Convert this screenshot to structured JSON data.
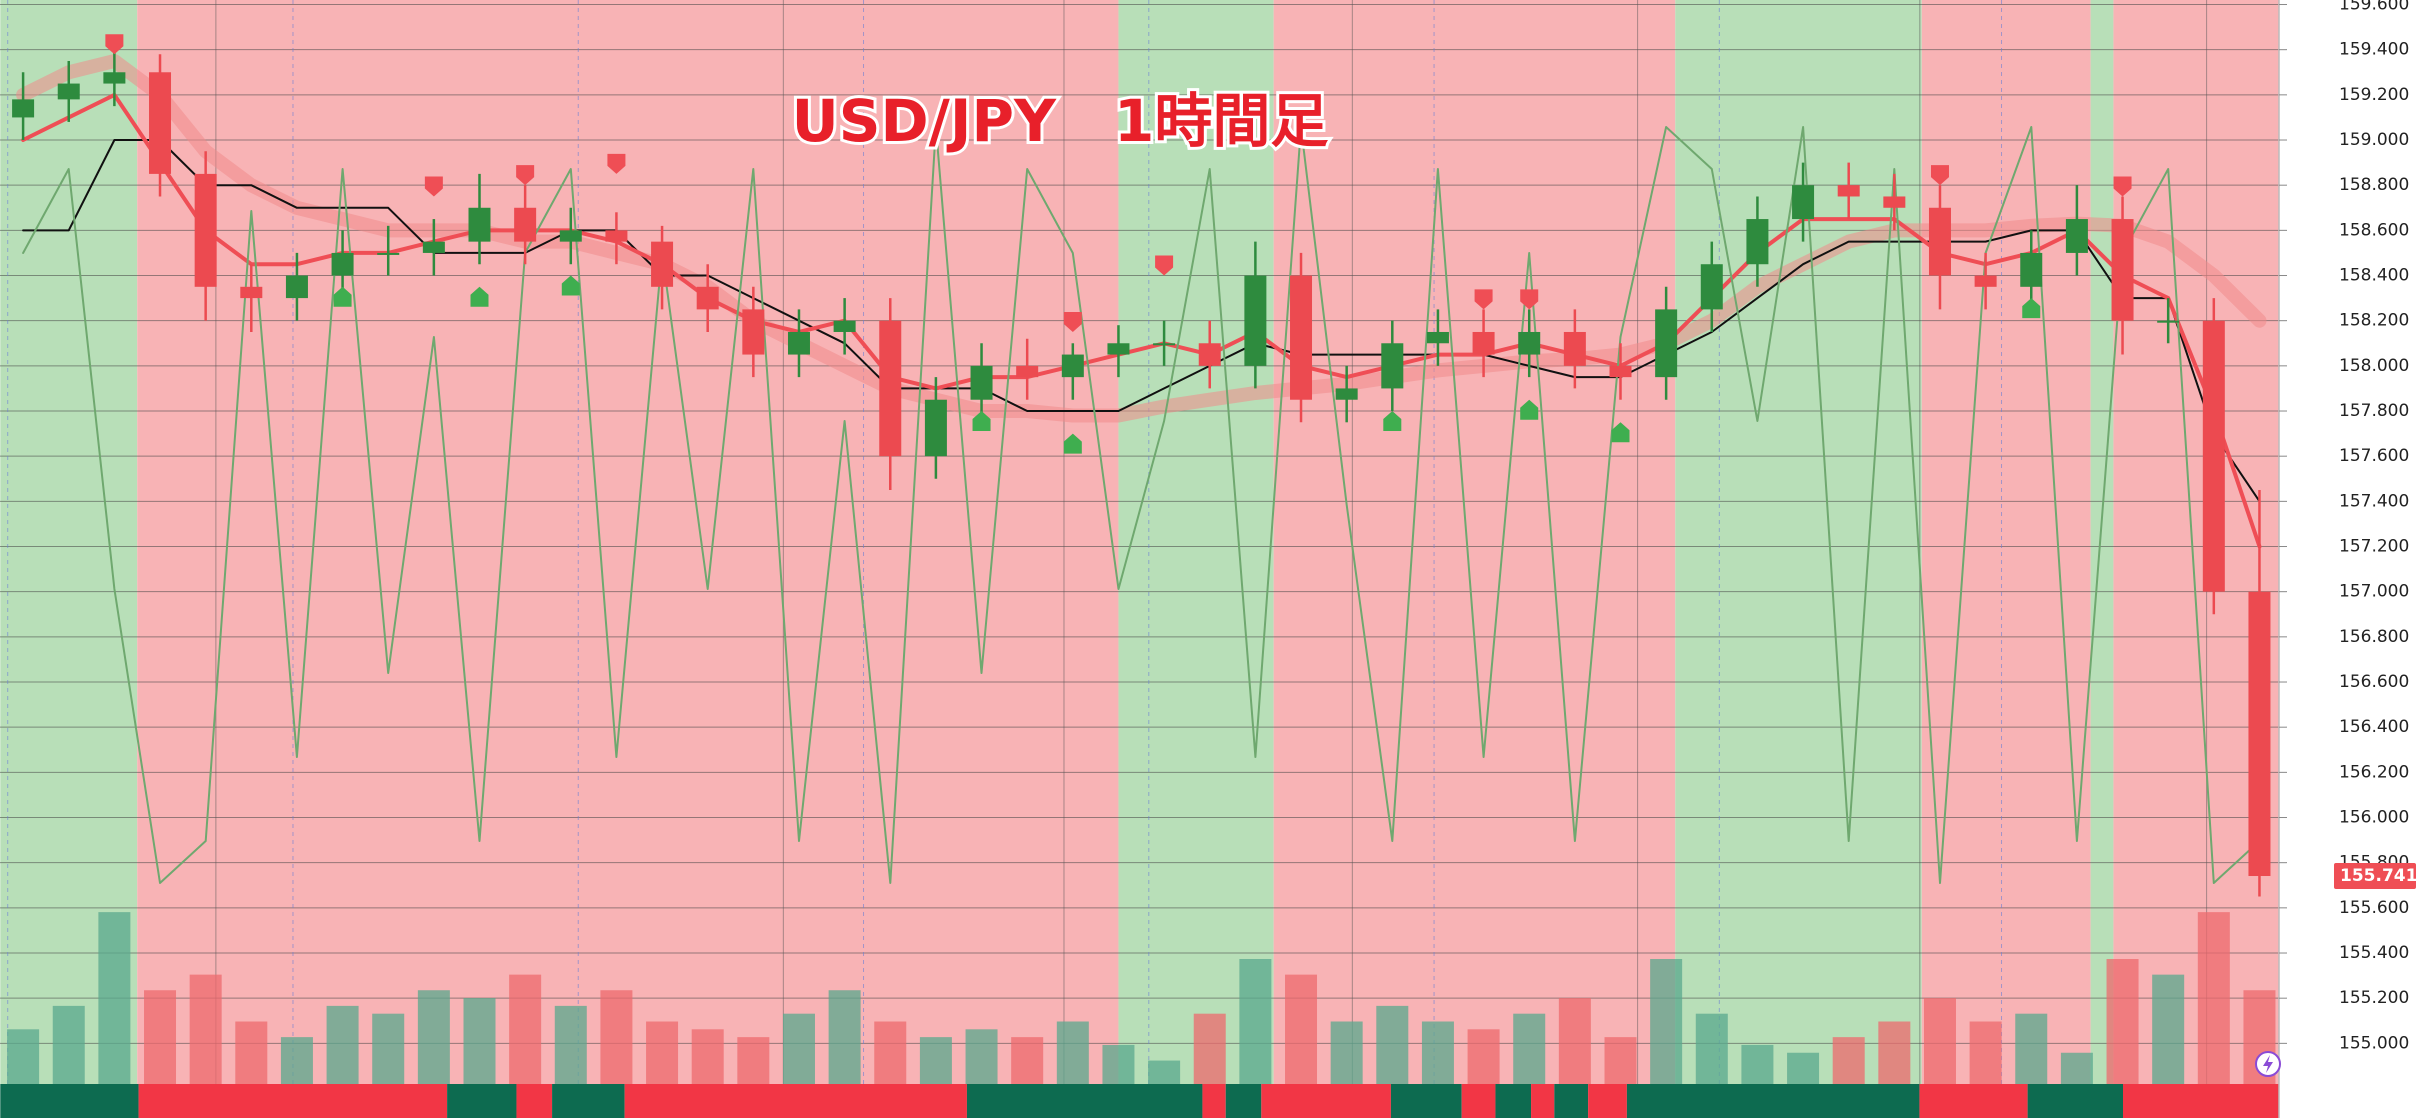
{
  "chart_data": {
    "type": "candlestick",
    "title": "USD/JPY　1時間足",
    "title_color": "#e8202a",
    "ylim": [
      154.82,
      159.62
    ],
    "yticks": [
      {
        "value": 155.0,
        "label": "155.000"
      },
      {
        "value": 155.2,
        "label": "155.200"
      },
      {
        "value": 155.4,
        "label": "155.400"
      },
      {
        "value": 155.6,
        "label": "155.600"
      },
      {
        "value": 155.8,
        "label": "155.800"
      },
      {
        "value": 156.0,
        "label": "156.000"
      },
      {
        "value": 156.2,
        "label": "156.200"
      },
      {
        "value": 156.4,
        "label": "156.400"
      },
      {
        "value": 156.6,
        "label": "156.600"
      },
      {
        "value": 156.8,
        "label": "156.800"
      },
      {
        "value": 157.0,
        "label": "157.000"
      },
      {
        "value": 157.2,
        "label": "157.200"
      },
      {
        "value": 157.4,
        "label": "157.400"
      },
      {
        "value": 157.6,
        "label": "157.600"
      },
      {
        "value": 157.8,
        "label": "157.800"
      },
      {
        "value": 158.0,
        "label": "158.000"
      },
      {
        "value": 158.2,
        "label": "158.200"
      },
      {
        "value": 158.4,
        "label": "158.400"
      },
      {
        "value": 158.6,
        "label": "158.600"
      },
      {
        "value": 158.8,
        "label": "158.800"
      },
      {
        "value": 159.0,
        "label": "159.000"
      },
      {
        "value": 159.2,
        "label": "159.200"
      },
      {
        "value": 159.4,
        "label": "159.400"
      },
      {
        "value": 159.6,
        "label": "159.600"
      }
    ],
    "grid": true,
    "up_color": "#2e8b3e",
    "down_color": "#ec4a50",
    "open": [
      159.1,
      159.18,
      159.25,
      159.3,
      158.85,
      158.35,
      158.3,
      158.4,
      158.5,
      158.5,
      158.55,
      158.7,
      158.55,
      158.6,
      158.55,
      158.35,
      158.25,
      158.05,
      158.15,
      158.2,
      157.6,
      157.85,
      158.0,
      157.95,
      158.05,
      158.1,
      158.1,
      158.0,
      158.4,
      157.85,
      157.9,
      158.1,
      158.15,
      158.05,
      158.15,
      158.0,
      157.95,
      158.25,
      158.45,
      158.65,
      158.8,
      158.75,
      158.7,
      158.4,
      158.35,
      158.5,
      158.65,
      158.2,
      158.2,
      157.0
    ],
    "high": [
      159.3,
      159.35,
      159.4,
      159.38,
      158.95,
      158.45,
      158.5,
      158.6,
      158.62,
      158.65,
      158.85,
      158.8,
      158.7,
      158.68,
      158.62,
      158.45,
      158.35,
      158.25,
      158.3,
      158.3,
      157.95,
      158.1,
      158.12,
      158.1,
      158.18,
      158.2,
      158.2,
      158.55,
      158.5,
      158.0,
      158.2,
      158.25,
      158.25,
      158.25,
      158.25,
      158.1,
      158.35,
      158.55,
      158.75,
      158.9,
      158.9,
      158.85,
      158.8,
      158.5,
      158.6,
      158.8,
      158.75,
      158.3,
      158.3,
      157.45
    ],
    "low": [
      159.0,
      159.08,
      159.15,
      158.75,
      158.2,
      158.15,
      158.2,
      158.3,
      158.4,
      158.4,
      158.45,
      158.45,
      158.45,
      158.45,
      158.25,
      158.15,
      157.95,
      157.95,
      158.05,
      157.45,
      157.5,
      157.75,
      157.85,
      157.85,
      157.95,
      158.0,
      157.9,
      157.9,
      157.75,
      157.75,
      157.8,
      158.0,
      157.95,
      157.95,
      157.9,
      157.85,
      157.85,
      158.15,
      158.35,
      158.55,
      158.65,
      158.6,
      158.25,
      158.25,
      158.25,
      158.4,
      158.05,
      158.1,
      156.9,
      155.65
    ],
    "close": [
      159.18,
      159.25,
      159.3,
      158.85,
      158.35,
      158.3,
      158.4,
      158.5,
      158.5,
      158.55,
      158.7,
      158.55,
      158.6,
      158.55,
      158.35,
      158.25,
      158.05,
      158.15,
      158.2,
      157.6,
      157.85,
      158.0,
      157.95,
      158.05,
      158.1,
      158.1,
      158.0,
      158.4,
      157.85,
      157.9,
      158.1,
      158.15,
      158.05,
      158.15,
      158.0,
      157.95,
      158.25,
      158.45,
      158.65,
      158.8,
      158.75,
      158.7,
      158.4,
      158.35,
      158.5,
      158.65,
      158.2,
      158.2,
      157.0,
      155.741
    ],
    "volume": [
      35,
      50,
      110,
      60,
      70,
      40,
      30,
      50,
      45,
      60,
      55,
      70,
      50,
      60,
      40,
      35,
      30,
      45,
      60,
      40,
      30,
      35,
      30,
      40,
      25,
      15,
      45,
      80,
      70,
      40,
      50,
      40,
      35,
      45,
      55,
      30,
      80,
      45,
      25,
      20,
      30,
      40,
      55,
      40,
      45,
      20,
      80,
      70,
      110,
      60
    ],
    "volume_lim": [
      0,
      160
    ],
    "series": [
      {
        "color": "#f08a8a",
        "width": 14,
        "opacity": 0.55,
        "values": [
          159.2,
          159.3,
          159.35,
          159.2,
          158.95,
          158.8,
          158.7,
          158.65,
          158.6,
          158.6,
          158.6,
          158.55,
          158.55,
          158.5,
          158.45,
          158.35,
          158.2,
          158.1,
          158.0,
          157.9,
          157.85,
          157.8,
          157.8,
          157.78,
          157.78,
          157.82,
          157.85,
          157.88,
          157.9,
          157.92,
          157.95,
          157.98,
          158.0,
          158.02,
          158.03,
          158.05,
          158.1,
          158.2,
          158.35,
          158.45,
          158.55,
          158.6,
          158.6,
          158.6,
          158.62,
          158.63,
          158.62,
          158.55,
          158.4,
          158.2
        ]
      },
      {
        "color": "#111111",
        "width": 2,
        "opacity": 1,
        "values": [
          158.6,
          158.6,
          159.0,
          159.0,
          158.8,
          158.8,
          158.7,
          158.7,
          158.7,
          158.5,
          158.5,
          158.5,
          158.6,
          158.6,
          158.4,
          158.4,
          158.3,
          158.2,
          158.1,
          157.9,
          157.9,
          157.9,
          157.8,
          157.8,
          157.8,
          157.9,
          158.0,
          158.1,
          158.05,
          158.05,
          158.05,
          158.05,
          158.05,
          158.0,
          157.95,
          157.95,
          158.05,
          158.15,
          158.3,
          158.45,
          158.55,
          158.55,
          158.55,
          158.55,
          158.6,
          158.6,
          158.3,
          158.3,
          157.7,
          157.4
        ]
      },
      {
        "color": "#ef4e55",
        "width": 4,
        "opacity": 1,
        "values": [
          159.0,
          159.1,
          159.2,
          158.9,
          158.6,
          158.45,
          158.45,
          158.5,
          158.5,
          158.55,
          158.6,
          158.6,
          158.6,
          158.55,
          158.45,
          158.3,
          158.2,
          158.15,
          158.2,
          157.95,
          157.9,
          157.95,
          157.95,
          158.0,
          158.05,
          158.1,
          158.05,
          158.15,
          158.0,
          157.95,
          158.0,
          158.05,
          158.05,
          158.1,
          158.05,
          158.0,
          158.1,
          158.3,
          158.5,
          158.65,
          158.65,
          158.65,
          158.5,
          158.45,
          158.5,
          158.6,
          158.4,
          158.3,
          157.8,
          157.2
        ]
      },
      {
        "color": "#6fa86f",
        "width": 2,
        "opacity": 1,
        "axis": "y2",
        "values": [
          80,
          90,
          40,
          5,
          10,
          85,
          20,
          90,
          30,
          70,
          10,
          80,
          90,
          20,
          80,
          40,
          90,
          10,
          60,
          5,
          95,
          30,
          90,
          80,
          40,
          60,
          90,
          20,
          95,
          50,
          10,
          90,
          20,
          80,
          10,
          70,
          95,
          90,
          60,
          95,
          10,
          90,
          5,
          80,
          95,
          10,
          80,
          90,
          5,
          10
        ]
      }
    ],
    "y2lim": [
      0,
      100
    ],
    "zones": [
      {
        "start": -0.5,
        "end": 2.5,
        "color": "#b8dfb8"
      },
      {
        "start": 2.5,
        "end": 24,
        "color": "#f8b3b5"
      },
      {
        "start": 24,
        "end": 27.4,
        "color": "#b8dfb8"
      },
      {
        "start": 27.4,
        "end": 36.2,
        "color": "#f8b3b5"
      },
      {
        "start": 36.2,
        "end": 41.6,
        "color": "#b8dfb8"
      },
      {
        "start": 41.6,
        "end": 45.3,
        "color": "#f8b3b5"
      },
      {
        "start": 45.3,
        "end": 45.8,
        "color": "#b8dfb8"
      },
      {
        "start": 45.8,
        "end": 49.5,
        "color": "#f8b3b5"
      }
    ],
    "bottom_bar": {
      "edges": [
        -0.5,
        2.53,
        9.29,
        10.81,
        11.59,
        13.18,
        20.68,
        25.84,
        26.35,
        27.13,
        29.97,
        31.52,
        32.26,
        33.04,
        33.55,
        34.29,
        35.14,
        41.55,
        43.92,
        46.01,
        49.5
      ],
      "colors": [
        "#0d6b50",
        "#f23645",
        "#0d6b50",
        "#f23645",
        "#0d6b50",
        "#f23645",
        "#0d6b50",
        "#f23645",
        "#0d6b50",
        "#f23645",
        "#0d6b50",
        "#f23645",
        "#0d6b50",
        "#f23645",
        "#0d6b50",
        "#f23645",
        "#0d6b50",
        "#f23645",
        "#0d6b50",
        "#f23645"
      ]
    },
    "sell_markers": [
      {
        "index": 2,
        "price": 159.38
      },
      {
        "index": 9,
        "price": 158.75
      },
      {
        "index": 11,
        "price": 158.8
      },
      {
        "index": 13,
        "price": 158.85
      },
      {
        "index": 23,
        "price": 158.15
      },
      {
        "index": 25,
        "price": 158.4
      },
      {
        "index": 32,
        "price": 158.25
      },
      {
        "index": 33,
        "price": 158.25
      },
      {
        "index": 42,
        "price": 158.8
      },
      {
        "index": 46,
        "price": 158.75
      }
    ],
    "buy_markers": [
      {
        "index": 7,
        "price": 158.35
      },
      {
        "index": 10,
        "price": 158.35
      },
      {
        "index": 12,
        "price": 158.4
      },
      {
        "index": 21,
        "price": 157.8
      },
      {
        "index": 23,
        "price": 157.7
      },
      {
        "index": 30,
        "price": 157.8
      },
      {
        "index": 33,
        "price": 157.85
      },
      {
        "index": 35,
        "price": 157.75
      },
      {
        "index": 44,
        "price": 158.3
      }
    ]
  }
}
